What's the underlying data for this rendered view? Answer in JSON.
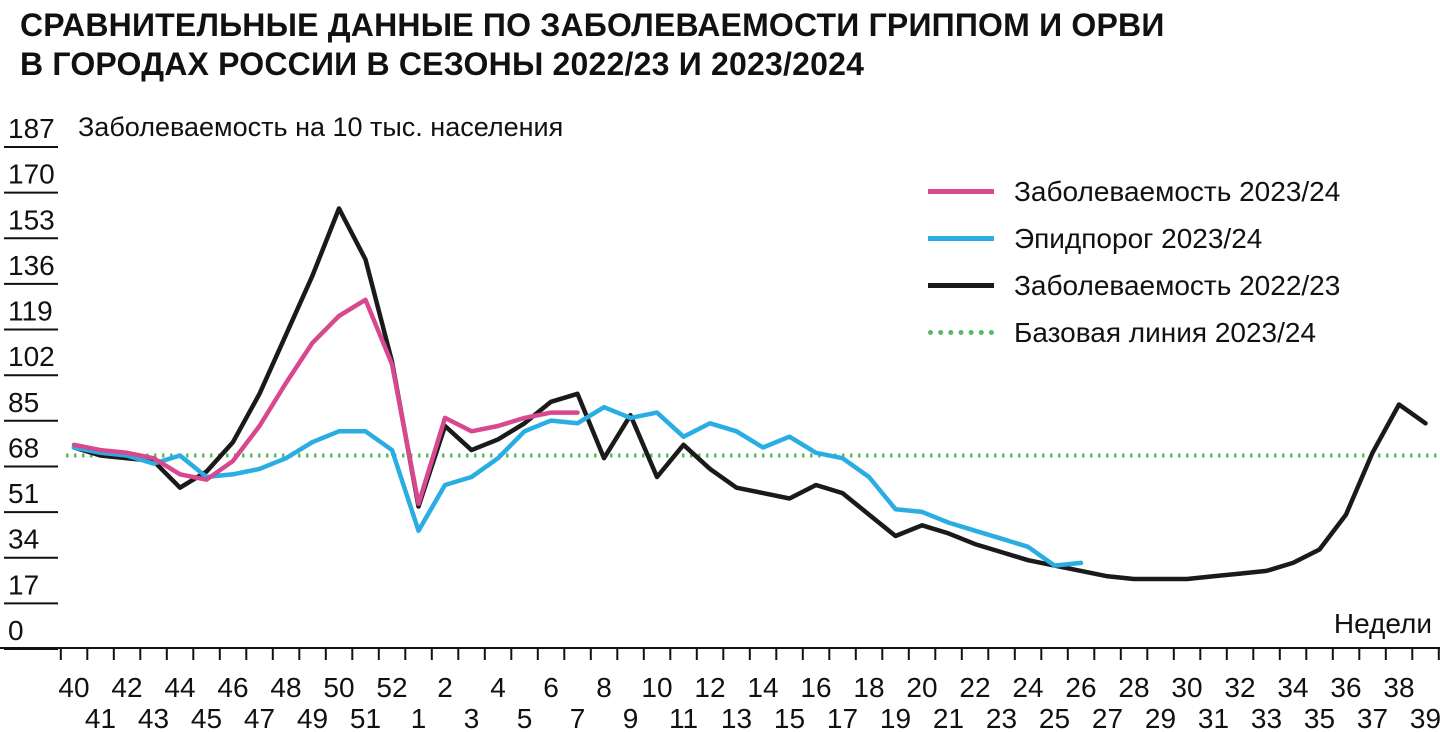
{
  "title": {
    "line1": "СРАВНИТЕЛЬНЫЕ ДАННЫЕ ПО ЗАБОЛЕВАЕМОСТИ ГРИППОМ И ОРВИ",
    "line2": "В ГОРОДАХ РОССИИ В СЕЗОНЫ 2022/23 И 2023/2024"
  },
  "y_axis": {
    "label": "Заболеваемость на 10 тыс. населения",
    "ticks": [
      187,
      170,
      153,
      136,
      119,
      102,
      85,
      68,
      51,
      34,
      17,
      0
    ]
  },
  "x_axis": {
    "label": "Недели"
  },
  "legend": {
    "items": [
      {
        "label": "Заболеваемость 2023/24",
        "color": "#d8488f",
        "style": "solid"
      },
      {
        "label": "Эпидпорог 2023/24",
        "color": "#29ade3",
        "style": "solid"
      },
      {
        "label": "Заболеваемость 2022/23",
        "color": "#1a1a1a",
        "style": "solid"
      },
      {
        "label": "Базовая линия 2023/24",
        "color": "#5bb963",
        "style": "dotted"
      }
    ]
  },
  "chart_data": {
    "type": "line",
    "title": "СРАВНИТЕЛЬНЫЕ ДАННЫЕ ПО ЗАБОЛЕВАЕМОСТИ ГРИППОМ И ОРВИ В ГОРОДАХ РОССИИ В СЕЗОНЫ 2022/23 И 2023/2024",
    "ylabel": "Заболеваемость на 10 тыс. населения",
    "xlabel": "Недели",
    "ylim": [
      0,
      187
    ],
    "y_ticks": [
      0,
      17,
      34,
      51,
      68,
      85,
      102,
      119,
      136,
      153,
      170,
      187
    ],
    "grid": false,
    "legend_position": "top-right",
    "x": [
      "40",
      "41",
      "42",
      "43",
      "44",
      "45",
      "46",
      "47",
      "48",
      "49",
      "50",
      "51",
      "52",
      "1",
      "2",
      "3",
      "4",
      "5",
      "6",
      "7",
      "8",
      "9",
      "10",
      "11",
      "12",
      "13",
      "14",
      "15",
      "16",
      "17",
      "18",
      "19",
      "20",
      "21",
      "22",
      "23",
      "24",
      "25",
      "26",
      "27",
      "28",
      "29",
      "30",
      "31",
      "32",
      "33",
      "34",
      "35",
      "36",
      "37",
      "38",
      "39"
    ],
    "series": [
      {
        "name": "Заболеваемость 2023/24",
        "color": "#d8488f",
        "style": "solid",
        "values": [
          69,
          67,
          66,
          64,
          58,
          56,
          63,
          76,
          92,
          107,
          117,
          123,
          99,
          47,
          79,
          74,
          76,
          79,
          81,
          81
        ]
      },
      {
        "name": "Эпидпорог 2023/24",
        "color": "#29ade3",
        "style": "solid",
        "values": [
          68,
          66,
          65,
          62,
          65,
          57,
          58,
          60,
          64,
          70,
          74,
          74,
          67,
          37,
          54,
          57,
          64,
          74,
          78,
          77,
          83,
          79,
          81,
          72,
          77,
          74,
          68,
          72,
          66,
          64,
          57,
          45,
          44,
          40,
          37,
          34,
          31,
          24,
          25
        ]
      },
      {
        "name": "Заболеваемость 2022/23",
        "color": "#1a1a1a",
        "style": "solid",
        "values": [
          68,
          65,
          64,
          63,
          53,
          59,
          70,
          88,
          110,
          132,
          157,
          138,
          100,
          46,
          76,
          67,
          71,
          77,
          85,
          88,
          64,
          80,
          57,
          69,
          60,
          53,
          51,
          49,
          54,
          51,
          43,
          35,
          39,
          36,
          32,
          29,
          26,
          24,
          22,
          20,
          19,
          19,
          19,
          20,
          21,
          22,
          25,
          30,
          43,
          66,
          84,
          77
        ]
      }
    ],
    "baseline": {
      "name": "Базовая линия 2023/24",
      "value": 65,
      "color": "#5bb963",
      "style": "dotted"
    }
  }
}
